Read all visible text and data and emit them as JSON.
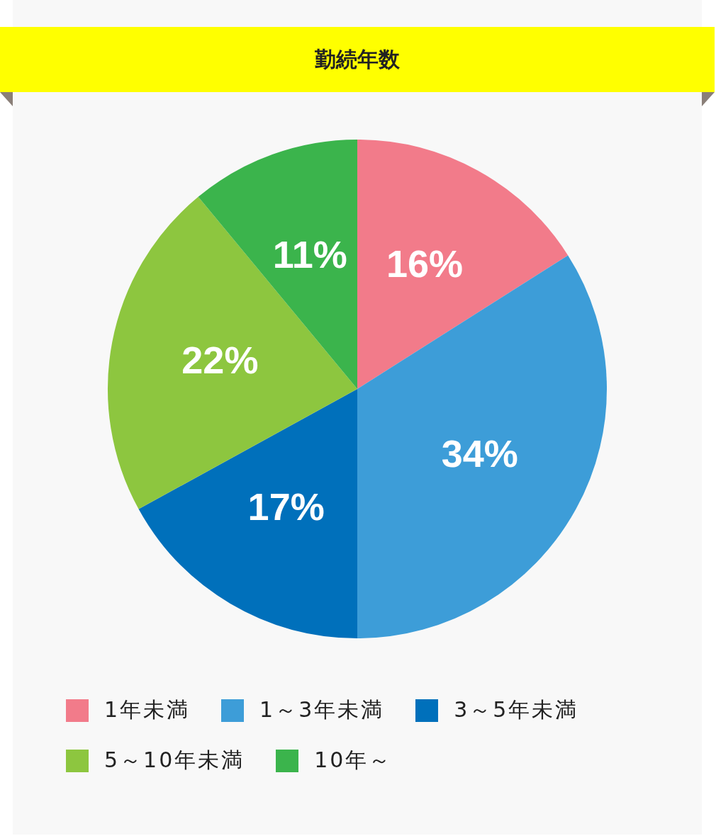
{
  "chart_data": {
    "type": "pie",
    "title": "勤続年数",
    "categories": [
      "1年未満",
      "1～3年未満",
      "3～5年未満",
      "5～10年未満",
      "10年～"
    ],
    "values": [
      16,
      34,
      17,
      22,
      11
    ],
    "value_labels": [
      "16%",
      "34%",
      "17%",
      "22%",
      "11%"
    ],
    "colors": [
      "#f27b8a",
      "#3d9dd8",
      "#0070bb",
      "#8dc63f",
      "#3bb44c"
    ],
    "legend": "bottom"
  }
}
